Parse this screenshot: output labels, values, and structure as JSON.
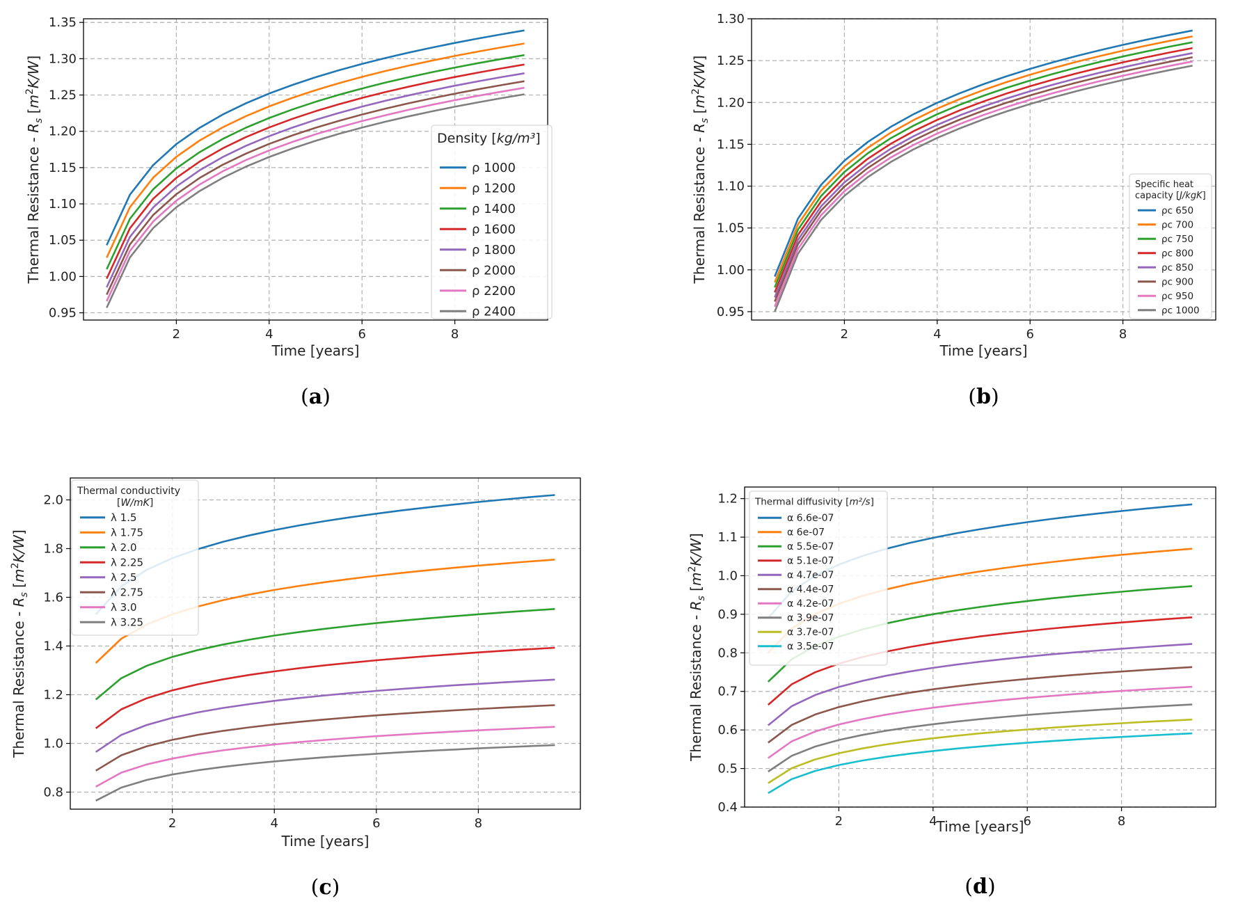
{
  "figure": {
    "panels": [
      {
        "caption": "a"
      },
      {
        "caption": "b"
      },
      {
        "caption": "c"
      },
      {
        "caption": "d"
      }
    ]
  },
  "chart_data": [
    {
      "type": "line",
      "panel": "a",
      "xlabel": "Time [years]",
      "ylabel": "Thermal Resistance - R_s [m²K/W]",
      "xlim": [
        0.0,
        10.0
      ],
      "ylim": [
        0.94,
        1.355
      ],
      "xticks": [
        2,
        4,
        6,
        8
      ],
      "yticks": [
        0.95,
        1.0,
        1.05,
        1.1,
        1.15,
        1.2,
        1.25,
        1.3,
        1.35
      ],
      "ytick_labels": [
        "0.95",
        "1.00",
        "1.05",
        "1.10",
        "1.15",
        "1.20",
        "1.25",
        "1.30",
        "1.35"
      ],
      "grid": true,
      "legend_title": "Density [kg/m³]",
      "legend_position": "right",
      "x": [
        0.5,
        1,
        1.5,
        2,
        2.5,
        3,
        3.5,
        4,
        4.5,
        5,
        5.5,
        6,
        6.5,
        7,
        7.5,
        8,
        8.5,
        9,
        9.5
      ],
      "series": [
        {
          "name": "ρ 1000",
          "color": "#1f77b4",
          "start": 1.043,
          "end": 1.339
        },
        {
          "name": "ρ 1200",
          "color": "#ff7f0e",
          "start": 1.026,
          "end": 1.321
        },
        {
          "name": "ρ 1400",
          "color": "#2ca02c",
          "start": 1.01,
          "end": 1.305
        },
        {
          "name": "ρ 1600",
          "color": "#d62728",
          "start": 0.997,
          "end": 1.292
        },
        {
          "name": "ρ 1800",
          "color": "#9467bd",
          "start": 0.985,
          "end": 1.28
        },
        {
          "name": "ρ 2000",
          "color": "#8c564b",
          "start": 0.975,
          "end": 1.269
        },
        {
          "name": "ρ 2200",
          "color": "#e377c2",
          "start": 0.966,
          "end": 1.26
        },
        {
          "name": "ρ 2400",
          "color": "#7f7f7f",
          "start": 0.957,
          "end": 1.251
        }
      ]
    },
    {
      "type": "line",
      "panel": "b",
      "xlabel": "Time [years]",
      "ylabel": "Thermal Resistance - R_s [m²K/W]",
      "xlim": [
        0.0,
        10.0
      ],
      "ylim": [
        0.94,
        1.3
      ],
      "xticks": [
        2,
        4,
        6,
        8
      ],
      "yticks": [
        0.95,
        1.0,
        1.05,
        1.1,
        1.15,
        1.2,
        1.25,
        1.3
      ],
      "ytick_labels": [
        "0.95",
        "1.00",
        "1.05",
        "1.10",
        "1.15",
        "1.20",
        "1.25",
        "1.30"
      ],
      "grid": true,
      "legend_title": "Specific heat capacity [J/kgK]",
      "legend_position": "lower right",
      "x": [
        0.5,
        1,
        1.5,
        2,
        2.5,
        3,
        3.5,
        4,
        4.5,
        5,
        5.5,
        6,
        6.5,
        7,
        7.5,
        8,
        8.5,
        9,
        9.5
      ],
      "series": [
        {
          "name": "ρc 650",
          "color": "#1f77b4",
          "start": 0.992,
          "end": 1.286
        },
        {
          "name": "ρc 700",
          "color": "#ff7f0e",
          "start": 0.985,
          "end": 1.279
        },
        {
          "name": "ρc 750",
          "color": "#2ca02c",
          "start": 0.979,
          "end": 1.272
        },
        {
          "name": "ρc 800",
          "color": "#d62728",
          "start": 0.973,
          "end": 1.265
        },
        {
          "name": "ρc 850",
          "color": "#9467bd",
          "start": 0.967,
          "end": 1.259
        },
        {
          "name": "ρc 900",
          "color": "#8c564b",
          "start": 0.962,
          "end": 1.254
        },
        {
          "name": "ρc 950",
          "color": "#e377c2",
          "start": 0.956,
          "end": 1.249
        },
        {
          "name": "ρc 1000",
          "color": "#7f7f7f",
          "start": 0.95,
          "end": 1.244
        }
      ]
    },
    {
      "type": "line",
      "panel": "c",
      "xlabel": "Time [years]",
      "ylabel": "Thermal Resistance - R_s [m²K/W]",
      "xlim": [
        0.0,
        10.0
      ],
      "ylim": [
        0.73,
        2.09
      ],
      "xticks": [
        2,
        4,
        6,
        8
      ],
      "yticks": [
        0.8,
        1.0,
        1.2,
        1.4,
        1.6,
        1.8,
        2.0
      ],
      "ytick_labels": [
        "0.8",
        "1.0",
        "1.2",
        "1.4",
        "1.6",
        "1.8",
        "2.0"
      ],
      "grid": true,
      "legend_title": "Thermal conductivity [W/mK]",
      "legend_position": "upper left",
      "x": [
        0.5,
        1,
        1.5,
        2,
        2.5,
        3,
        3.5,
        4,
        4.5,
        5,
        5.5,
        6,
        6.5,
        7,
        7.5,
        8,
        8.5,
        9,
        9.5
      ],
      "series": [
        {
          "name": "λ 1.5",
          "color": "#1f77b4",
          "start": 1.53,
          "end": 2.02
        },
        {
          "name": "λ 1.75",
          "color": "#ff7f0e",
          "start": 1.33,
          "end": 1.755
        },
        {
          "name": "λ 2.0",
          "color": "#2ca02c",
          "start": 1.18,
          "end": 1.552
        },
        {
          "name": "λ 2.25",
          "color": "#d62728",
          "start": 1.062,
          "end": 1.393
        },
        {
          "name": "λ 2.5",
          "color": "#9467bd",
          "start": 0.965,
          "end": 1.262
        },
        {
          "name": "λ 2.75",
          "color": "#8c564b",
          "start": 0.888,
          "end": 1.157
        },
        {
          "name": "λ 3.0",
          "color": "#e377c2",
          "start": 0.822,
          "end": 1.068
        },
        {
          "name": "λ 3.25",
          "color": "#7f7f7f",
          "start": 0.765,
          "end": 0.993
        }
      ]
    },
    {
      "type": "line",
      "panel": "d",
      "xlabel": "Time [years]",
      "ylabel": "Thermal Resistance - R_s [m²K/W]",
      "xlim": [
        0.0,
        10.0
      ],
      "ylim": [
        0.4,
        1.23
      ],
      "xticks": [
        2,
        4,
        6,
        8
      ],
      "yticks": [
        0.4,
        0.5,
        0.6,
        0.7,
        0.8,
        0.9,
        1.0,
        1.1,
        1.2
      ],
      "ytick_labels": [
        "0.4",
        "0.5",
        "0.6",
        "0.7",
        "0.8",
        "0.9",
        "1.0",
        "1.1",
        "1.2"
      ],
      "grid": true,
      "legend_title": "Thermal diffusivity [m²/s]",
      "legend_position": "upper left",
      "x": [
        0.5,
        1,
        1.5,
        2,
        2.5,
        3,
        3.5,
        4,
        4.5,
        5,
        5.5,
        6,
        6.5,
        7,
        7.5,
        8,
        8.5,
        9,
        9.5
      ],
      "series": [
        {
          "name": "α 6.6e-07",
          "color": "#1f77b4",
          "start": 0.89,
          "end": 1.185
        },
        {
          "name": "α 6e-07",
          "color": "#ff7f0e",
          "start": 0.8,
          "end": 1.07
        },
        {
          "name": "α 5.5e-07",
          "color": "#2ca02c",
          "start": 0.725,
          "end": 0.973
        },
        {
          "name": "α 5.1e-07",
          "color": "#d62728",
          "start": 0.665,
          "end": 0.892
        },
        {
          "name": "α 4.7e-07",
          "color": "#9467bd",
          "start": 0.612,
          "end": 0.823
        },
        {
          "name": "α 4.4e-07",
          "color": "#8c564b",
          "start": 0.567,
          "end": 0.763
        },
        {
          "name": "α 4.2e-07",
          "color": "#e377c2",
          "start": 0.527,
          "end": 0.712
        },
        {
          "name": "α 3.9e-07",
          "color": "#7f7f7f",
          "start": 0.492,
          "end": 0.666
        },
        {
          "name": "α 3.7e-07",
          "color": "#bcbd22",
          "start": 0.462,
          "end": 0.627
        },
        {
          "name": "α 3.5e-07",
          "color": "#17becf",
          "start": 0.436,
          "end": 0.591
        }
      ]
    }
  ]
}
